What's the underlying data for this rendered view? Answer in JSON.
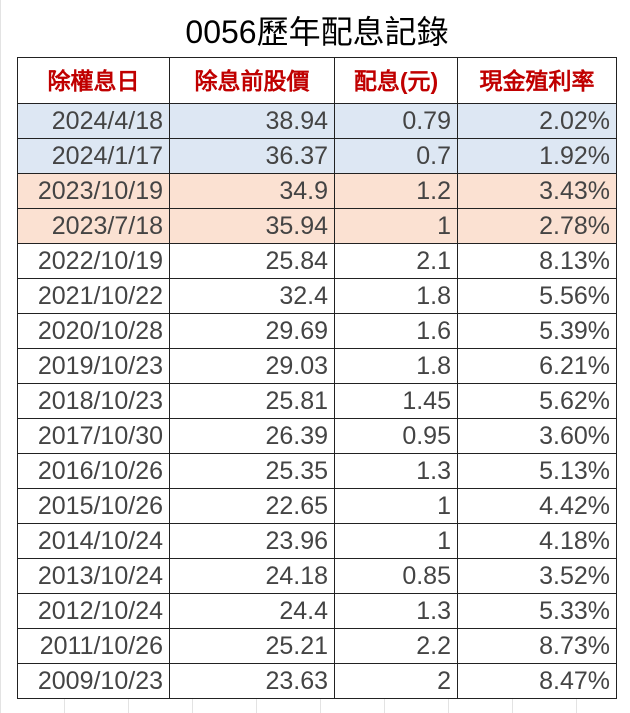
{
  "title": "0056歷年配息記錄",
  "table": {
    "header": [
      "除權息日",
      "除息前股價",
      "配息(元)",
      "現金殖利率"
    ],
    "rows": [
      [
        "2024/4/18",
        "38.94",
        "0.79",
        "2.02%"
      ],
      [
        "2024/1/17",
        "36.37",
        "0.7",
        "1.92%"
      ],
      [
        "2023/10/19",
        "34.9",
        "1.2",
        "3.43%"
      ],
      [
        "2023/7/18",
        "35.94",
        "1",
        "2.78%"
      ],
      [
        "2022/10/19",
        "25.84",
        "2.1",
        "8.13%"
      ],
      [
        "2021/10/22",
        "32.4",
        "1.8",
        "5.56%"
      ],
      [
        "2020/10/28",
        "29.69",
        "1.6",
        "5.39%"
      ],
      [
        "2019/10/23",
        "29.03",
        "1.8",
        "6.21%"
      ],
      [
        "2018/10/23",
        "25.81",
        "1.45",
        "5.62%"
      ],
      [
        "2017/10/30",
        "26.39",
        "0.95",
        "3.60%"
      ],
      [
        "2016/10/26",
        "25.35",
        "1.3",
        "5.13%"
      ],
      [
        "2015/10/26",
        "22.65",
        "1",
        "4.42%"
      ],
      [
        "2014/10/24",
        "23.96",
        "1",
        "4.18%"
      ],
      [
        "2013/10/24",
        "24.18",
        "0.85",
        "3.52%"
      ],
      [
        "2012/10/24",
        "24.4",
        "1.3",
        "5.33%"
      ],
      [
        "2011/10/26",
        "25.21",
        "2.2",
        "8.73%"
      ],
      [
        "2009/10/23",
        "23.63",
        "2",
        "8.47%"
      ]
    ]
  }
}
